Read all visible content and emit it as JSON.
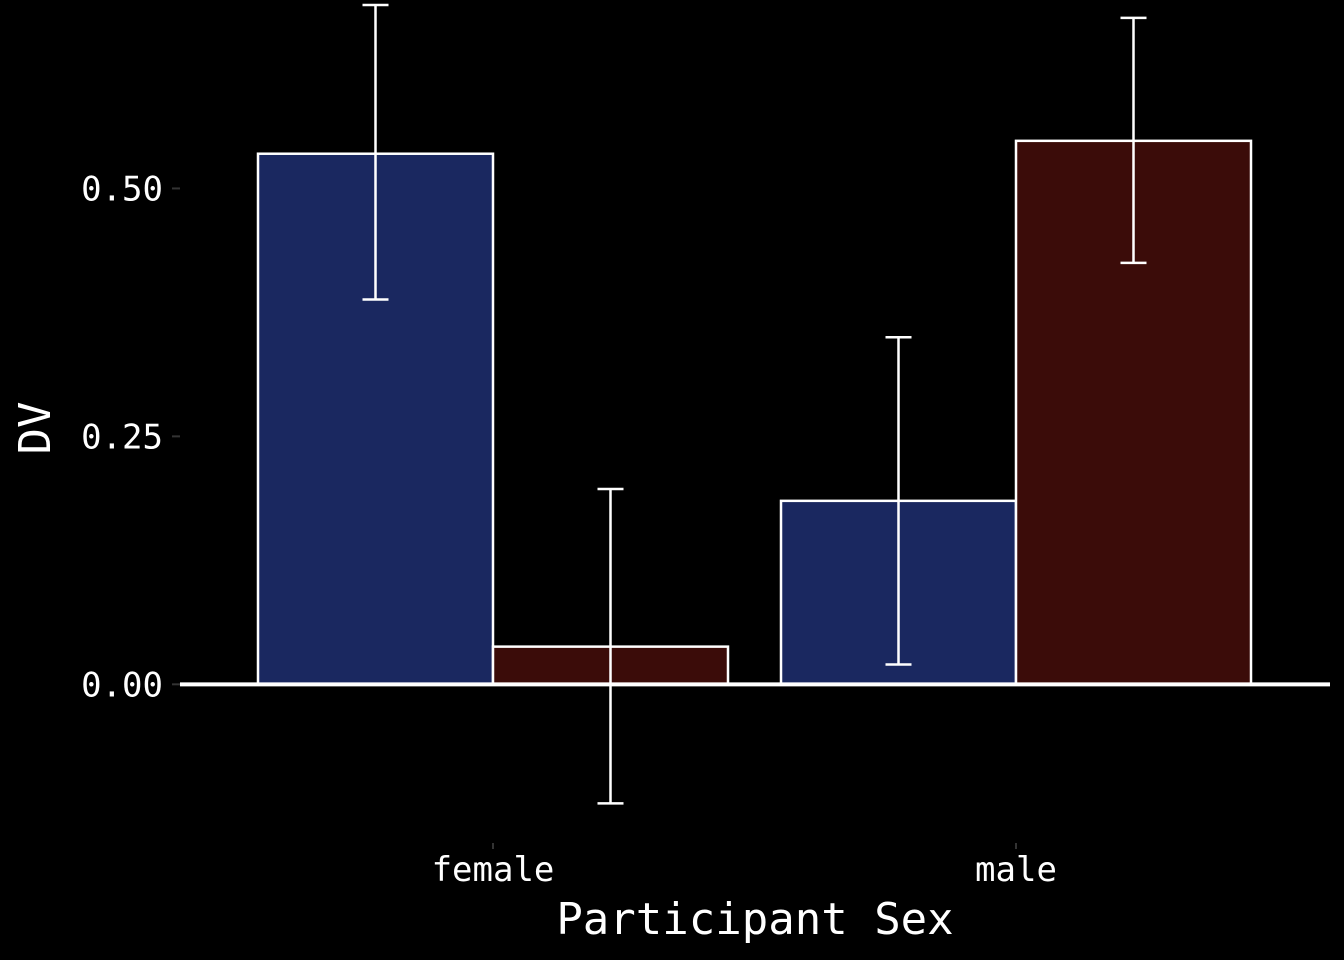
{
  "chart_data": {
    "type": "bar",
    "xlabel": "Participant Sex",
    "ylabel": "DV",
    "categories": [
      "female",
      "male"
    ],
    "ylim": [
      -0.16,
      0.69
    ],
    "yticks": [
      0.0,
      0.25,
      0.5
    ],
    "ytick_labels": [
      "0.00",
      "0.25",
      "0.50"
    ],
    "grid": false,
    "legend": "none",
    "series": [
      {
        "color": "#1a2860",
        "values": [
          0.535,
          0.185
        ],
        "error_low": [
          0.388,
          0.02
        ],
        "error_high": [
          0.685,
          0.35
        ]
      },
      {
        "color": "#3b0c09",
        "values": [
          0.038,
          0.548
        ],
        "error_low": [
          -0.12,
          0.425
        ],
        "error_high": [
          0.197,
          0.672
        ]
      }
    ],
    "colors": {
      "background": "#000000",
      "bar_outline": "#ffffff",
      "axis": "#ffffff",
      "text": "#ffffff"
    }
  }
}
